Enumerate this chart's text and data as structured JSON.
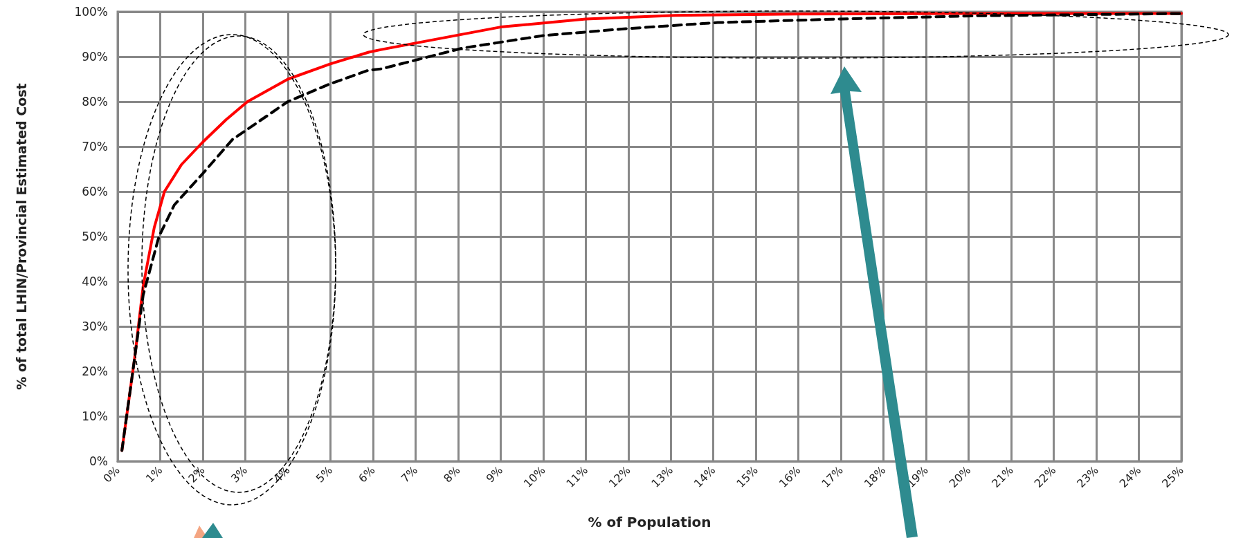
{
  "chart_data": {
    "type": "line",
    "xlabel": "% of Population",
    "ylabel": "% of total LHIN/Provincial Estimated Cost",
    "xlim": [
      0,
      25
    ],
    "ylim": [
      0,
      100
    ],
    "xticks": [
      {
        "value": 0,
        "label": "0%"
      },
      {
        "value": 1,
        "label": "1%"
      },
      {
        "value": 2,
        "label": "2%"
      },
      {
        "value": 3,
        "label": "3%"
      },
      {
        "value": 4,
        "label": "4%"
      },
      {
        "value": 5,
        "label": "5%"
      },
      {
        "value": 6,
        "label": "6%"
      },
      {
        "value": 7,
        "label": "7%"
      },
      {
        "value": 8,
        "label": "8%"
      },
      {
        "value": 9,
        "label": "9%"
      },
      {
        "value": 10,
        "label": "10%"
      },
      {
        "value": 11,
        "label": "11%"
      },
      {
        "value": 12,
        "label": "12%"
      },
      {
        "value": 13,
        "label": "13%"
      },
      {
        "value": 14,
        "label": "14%"
      },
      {
        "value": 15,
        "label": "15%"
      },
      {
        "value": 16,
        "label": "16%"
      },
      {
        "value": 17,
        "label": "17%"
      },
      {
        "value": 18,
        "label": "18%"
      },
      {
        "value": 19,
        "label": "19%"
      },
      {
        "value": 20,
        "label": "20%"
      },
      {
        "value": 21,
        "label": "21%"
      },
      {
        "value": 22,
        "label": "22%"
      },
      {
        "value": 23,
        "label": "23%"
      },
      {
        "value": 24,
        "label": "24%"
      },
      {
        "value": 25,
        "label": "25%"
      }
    ],
    "yticks": [
      {
        "value": 0,
        "label": "0%"
      },
      {
        "value": 10,
        "label": "10%"
      },
      {
        "value": 20,
        "label": "20%"
      },
      {
        "value": 30,
        "label": "30%"
      },
      {
        "value": 40,
        "label": "40%"
      },
      {
        "value": 50,
        "label": "50%"
      },
      {
        "value": 60,
        "label": "60%"
      },
      {
        "value": 70,
        "label": "70%"
      },
      {
        "value": 80,
        "label": "80%"
      },
      {
        "value": 90,
        "label": "90%"
      },
      {
        "value": 100,
        "label": "100%"
      }
    ],
    "grid": true,
    "marker": "none",
    "series": [
      {
        "color": "#ff0000",
        "line_style": "solid",
        "x": [
          0.1,
          0.4,
          0.6,
          0.86,
          1.1,
          1.5,
          2.0,
          2.55,
          3.05,
          4.0,
          5.0,
          5.9,
          6.2,
          9.0,
          11.0,
          13.1,
          16.0,
          20.0,
          25.0
        ],
        "values": [
          2.4,
          23,
          39,
          52,
          60,
          66,
          71,
          76,
          80,
          85,
          88.4,
          91,
          91.6,
          96.6,
          98.4,
          99.2,
          99.5,
          99.6,
          99.6
        ]
      },
      {
        "color": "#000000",
        "line_style": "dashed",
        "x": [
          0.1,
          0.4,
          0.6,
          0.97,
          1.33,
          2.0,
          2.7,
          4.0,
          5.0,
          5.9,
          6.2,
          8.1,
          10.0,
          11.9,
          14.1,
          17.0,
          20.2,
          25.0
        ],
        "values": [
          2.4,
          23,
          37,
          50,
          57,
          64,
          71.6,
          80,
          84,
          87,
          87.3,
          91.9,
          94.7,
          96.2,
          97.6,
          98.4,
          99.1,
          99.6
        ]
      }
    ]
  }
}
